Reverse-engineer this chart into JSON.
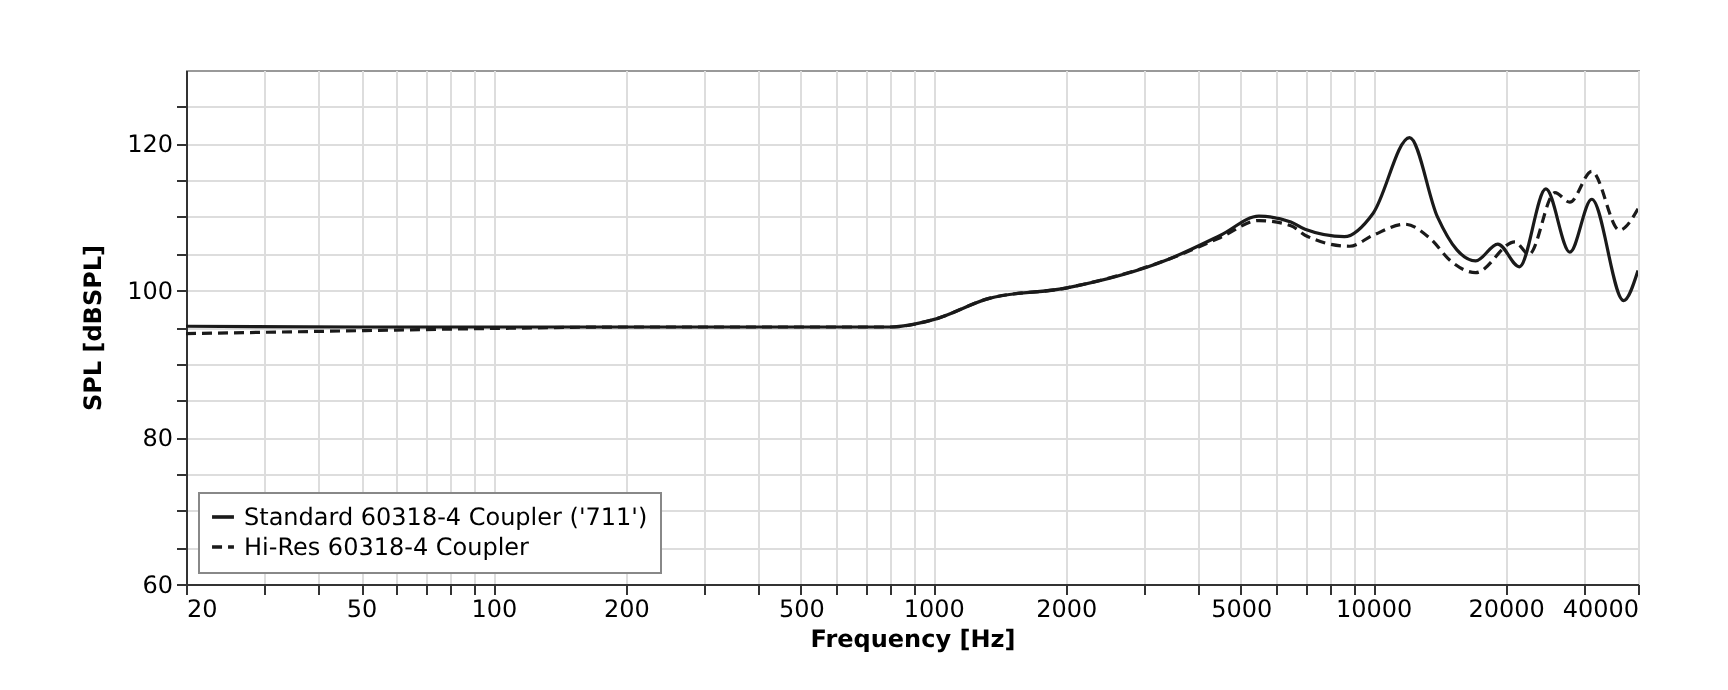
{
  "chart_data": {
    "type": "line",
    "xlabel": "Frequency [Hz]",
    "ylabel": "SPL [dBSPL]",
    "log": "x",
    "grid": true,
    "legend": "bottom left",
    "marker": "none",
    "xlim": [
      20,
      40000
    ],
    "ylim": [
      60,
      130
    ],
    "xticks": [
      20,
      {
        "value": 30,
        "label": null
      },
      {
        "value": 40,
        "label": null
      },
      50,
      {
        "value": 60,
        "label": null
      },
      {
        "value": 70,
        "label": null
      },
      {
        "value": 80,
        "label": null
      },
      {
        "value": 90,
        "label": null
      },
      100,
      200,
      {
        "value": 300,
        "label": null
      },
      {
        "value": 400,
        "label": null
      },
      500,
      {
        "value": 600,
        "label": null
      },
      {
        "value": 700,
        "label": null
      },
      {
        "value": 800,
        "label": null
      },
      {
        "value": 900,
        "label": null
      },
      1000,
      2000,
      {
        "value": 3000,
        "label": null
      },
      {
        "value": 4000,
        "label": null
      },
      5000,
      {
        "value": 6000,
        "label": null
      },
      {
        "value": 7000,
        "label": null
      },
      {
        "value": 8000,
        "label": null
      },
      {
        "value": 9000,
        "label": null
      },
      10000,
      20000,
      {
        "value": 30000,
        "label": null
      },
      40000
    ],
    "yticks": [
      60,
      {
        "value": 65,
        "label": null
      },
      {
        "value": 70,
        "label": null
      },
      {
        "value": 75,
        "label": null
      },
      80,
      {
        "value": 85,
        "label": null
      },
      {
        "value": 90,
        "label": null
      },
      {
        "value": 95,
        "label": null
      },
      100,
      {
        "value": 105,
        "label": null
      },
      {
        "value": 110,
        "label": null
      },
      {
        "value": 115,
        "label": null
      },
      120,
      {
        "value": 125,
        "label": null
      }
    ],
    "series": [
      {
        "name": "Standard 60318-4 Coupler ('711')",
        "color": "#1a1a1a",
        "line_style": "solid",
        "x": [
          20,
          50,
          100,
          200,
          500,
          800,
          1000,
          1340,
          2000,
          3450,
          4500,
          5500,
          6500,
          7000,
          8600,
          10000,
          12100,
          14000,
          15500,
          17100,
          19200,
          21500,
          24700,
          28000,
          31400,
          37100,
          40000
        ],
        "values": [
          95.1,
          95.0,
          95.0,
          95.0,
          95.0,
          95.0,
          96.0,
          98.9,
          100.3,
          104.3,
          107.5,
          110.1,
          109.3,
          108.3,
          107.3,
          110.5,
          120.8,
          110.0,
          105.5,
          104.0,
          106.3,
          103.2,
          113.8,
          105.2,
          112.4,
          98.6,
          102.7
        ]
      },
      {
        "name": "Hi-Res 60318-4 Coupler",
        "color": "#1a1a1a",
        "line_style": "dashed",
        "x": [
          20,
          50,
          100,
          200,
          500,
          800,
          1000,
          1340,
          2000,
          3450,
          4500,
          5500,
          6500,
          7000,
          8840,
          10000,
          11800,
          13500,
          15000,
          17100,
          21000,
          22600,
          25900,
          28000,
          31400,
          36300,
          40000
        ],
        "values": [
          94.1,
          94.5,
          94.8,
          95.0,
          95.0,
          95.0,
          96.0,
          98.9,
          100.3,
          104.3,
          107.2,
          109.5,
          108.8,
          107.5,
          106.0,
          107.5,
          109.0,
          107.0,
          104.0,
          102.4,
          106.6,
          104.9,
          113.3,
          112.0,
          116.2,
          108.2,
          111.1
        ]
      }
    ]
  }
}
